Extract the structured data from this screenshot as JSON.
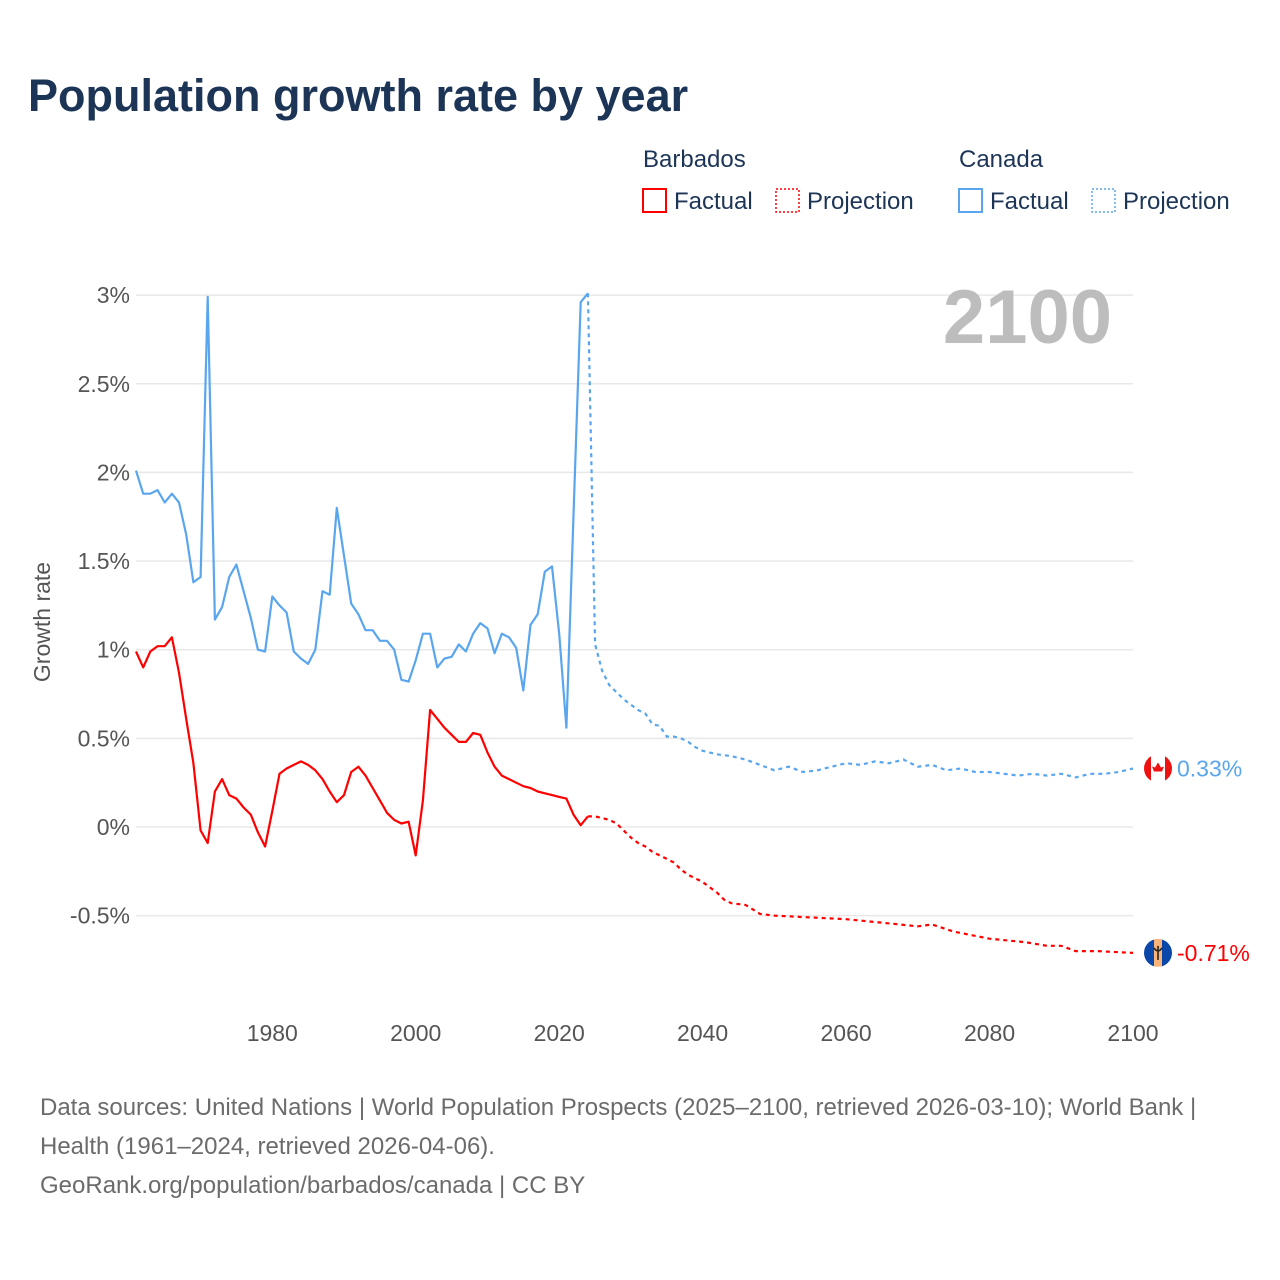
{
  "chart_data": {
    "type": "line",
    "title": "Population growth rate by year",
    "xlabel": "",
    "ylabel": "Growth rate",
    "xlim": [
      1961,
      2100
    ],
    "ylim": [
      -0.85,
      3.05
    ],
    "x_ticks": [
      1980,
      2000,
      2020,
      2040,
      2060,
      2080,
      2100
    ],
    "y_ticks": [
      3,
      2.5,
      2,
      1.5,
      1,
      0.5,
      0,
      -0.5
    ],
    "y_tick_labels": [
      "3%",
      "2.5%",
      "2%",
      "1.5%",
      "1%",
      "0.5%",
      "0%",
      "-0.5%"
    ],
    "grid": true,
    "year_watermark": "2100",
    "legend": {
      "placement": "top-right",
      "groups": [
        {
          "country": "Barbados",
          "factual": "Factual",
          "projection": "Projection"
        },
        {
          "country": "Canada",
          "factual": "Factual",
          "projection": "Projection"
        }
      ]
    },
    "series": [
      {
        "name": "Canada",
        "color": "#5aa6ee",
        "end_label": "0.33%",
        "factual": {
          "x": [
            1961,
            1962,
            1963,
            1964,
            1965,
            1966,
            1967,
            1968,
            1969,
            1970,
            1971,
            1972,
            1973,
            1974,
            1975,
            1976,
            1977,
            1978,
            1979,
            1980,
            1981,
            1982,
            1983,
            1984,
            1985,
            1986,
            1987,
            1988,
            1989,
            1990,
            1991,
            1992,
            1993,
            1994,
            1995,
            1996,
            1997,
            1998,
            1999,
            2000,
            2001,
            2002,
            2003,
            2004,
            2005,
            2006,
            2007,
            2008,
            2009,
            2010,
            2011,
            2012,
            2013,
            2014,
            2015,
            2016,
            2017,
            2018,
            2019,
            2020,
            2021,
            2022,
            2023,
            2024
          ],
          "y": [
            2.01,
            1.88,
            1.88,
            1.9,
            1.83,
            1.88,
            1.83,
            1.65,
            1.38,
            1.41,
            2.99,
            1.17,
            1.24,
            1.41,
            1.48,
            1.33,
            1.18,
            1.0,
            0.99,
            1.3,
            1.25,
            1.21,
            0.99,
            0.95,
            0.92,
            1.0,
            1.33,
            1.31,
            1.8,
            1.53,
            1.26,
            1.2,
            1.11,
            1.11,
            1.05,
            1.05,
            1.0,
            0.83,
            0.82,
            0.94,
            1.09,
            1.09,
            0.9,
            0.95,
            0.96,
            1.03,
            0.99,
            1.09,
            1.15,
            1.12,
            0.98,
            1.09,
            1.07,
            1.01,
            0.77,
            1.14,
            1.2,
            1.44,
            1.47,
            1.09,
            0.56,
            1.76,
            2.96,
            3.01
          ]
        },
        "projection": {
          "x": [
            2024,
            2025,
            2026,
            2027,
            2028,
            2029,
            2030,
            2031,
            2032,
            2033,
            2034,
            2035,
            2036,
            2037,
            2038,
            2039,
            2040,
            2042,
            2044,
            2046,
            2048,
            2050,
            2052,
            2054,
            2056,
            2058,
            2060,
            2062,
            2064,
            2066,
            2068,
            2070,
            2072,
            2074,
            2076,
            2078,
            2080,
            2082,
            2084,
            2086,
            2088,
            2090,
            2092,
            2094,
            2096,
            2098,
            2100
          ],
          "y": [
            3.01,
            1.03,
            0.88,
            0.8,
            0.76,
            0.72,
            0.69,
            0.66,
            0.64,
            0.58,
            0.57,
            0.51,
            0.51,
            0.5,
            0.48,
            0.45,
            0.43,
            0.41,
            0.4,
            0.38,
            0.35,
            0.32,
            0.34,
            0.31,
            0.32,
            0.34,
            0.36,
            0.35,
            0.37,
            0.36,
            0.38,
            0.34,
            0.35,
            0.32,
            0.33,
            0.31,
            0.31,
            0.3,
            0.29,
            0.3,
            0.29,
            0.3,
            0.28,
            0.3,
            0.3,
            0.31,
            0.33
          ]
        }
      },
      {
        "name": "Barbados",
        "color": "#ff0000",
        "end_label": "-0.71%",
        "factual": {
          "x": [
            1961,
            1962,
            1963,
            1964,
            1965,
            1966,
            1967,
            1968,
            1969,
            1970,
            1971,
            1972,
            1973,
            1974,
            1975,
            1976,
            1977,
            1978,
            1979,
            1980,
            1981,
            1982,
            1983,
            1984,
            1985,
            1986,
            1987,
            1988,
            1989,
            1990,
            1991,
            1992,
            1993,
            1994,
            1995,
            1996,
            1997,
            1998,
            1999,
            2000,
            2001,
            2002,
            2003,
            2004,
            2005,
            2006,
            2007,
            2008,
            2009,
            2010,
            2011,
            2012,
            2013,
            2014,
            2015,
            2016,
            2017,
            2018,
            2019,
            2020,
            2021,
            2022,
            2023,
            2024
          ],
          "y": [
            0.99,
            0.9,
            0.99,
            1.02,
            1.02,
            1.07,
            0.87,
            0.61,
            0.36,
            -0.02,
            -0.09,
            0.2,
            0.27,
            0.18,
            0.16,
            0.11,
            0.07,
            -0.03,
            -0.11,
            0.09,
            0.3,
            0.33,
            0.35,
            0.37,
            0.35,
            0.32,
            0.27,
            0.2,
            0.14,
            0.18,
            0.31,
            0.34,
            0.29,
            0.22,
            0.15,
            0.08,
            0.04,
            0.02,
            0.03,
            -0.16,
            0.15,
            0.66,
            0.61,
            0.56,
            0.52,
            0.48,
            0.48,
            0.53,
            0.52,
            0.42,
            0.34,
            0.29,
            0.27,
            0.25,
            0.23,
            0.22,
            0.2,
            0.19,
            0.18,
            0.17,
            0.16,
            0.07,
            0.01,
            0.06
          ]
        },
        "projection": {
          "x": [
            2024,
            2025,
            2026,
            2027,
            2028,
            2029,
            2030,
            2031,
            2032,
            2033,
            2034,
            2035,
            2036,
            2037,
            2038,
            2039,
            2040,
            2041,
            2042,
            2043,
            2044,
            2046,
            2048,
            2050,
            2055,
            2060,
            2065,
            2070,
            2072,
            2075,
            2080,
            2085,
            2088,
            2090,
            2092,
            2095,
            2100
          ],
          "y": [
            0.06,
            0.06,
            0.05,
            0.04,
            0.02,
            -0.02,
            -0.06,
            -0.09,
            -0.11,
            -0.14,
            -0.16,
            -0.18,
            -0.2,
            -0.24,
            -0.27,
            -0.29,
            -0.31,
            -0.34,
            -0.37,
            -0.41,
            -0.43,
            -0.44,
            -0.49,
            -0.5,
            -0.51,
            -0.52,
            -0.54,
            -0.56,
            -0.55,
            -0.59,
            -0.63,
            -0.65,
            -0.67,
            -0.67,
            -0.7,
            -0.7,
            -0.71
          ]
        }
      }
    ]
  },
  "footer": {
    "sources": "Data sources: United Nations | World Population Prospects (2025–2100, retrieved 2026-03-10); World Bank | Health (1961–2024, retrieved 2026-04-06).",
    "credit": "GeoRank.org/population/barbados/canada | CC BY"
  }
}
